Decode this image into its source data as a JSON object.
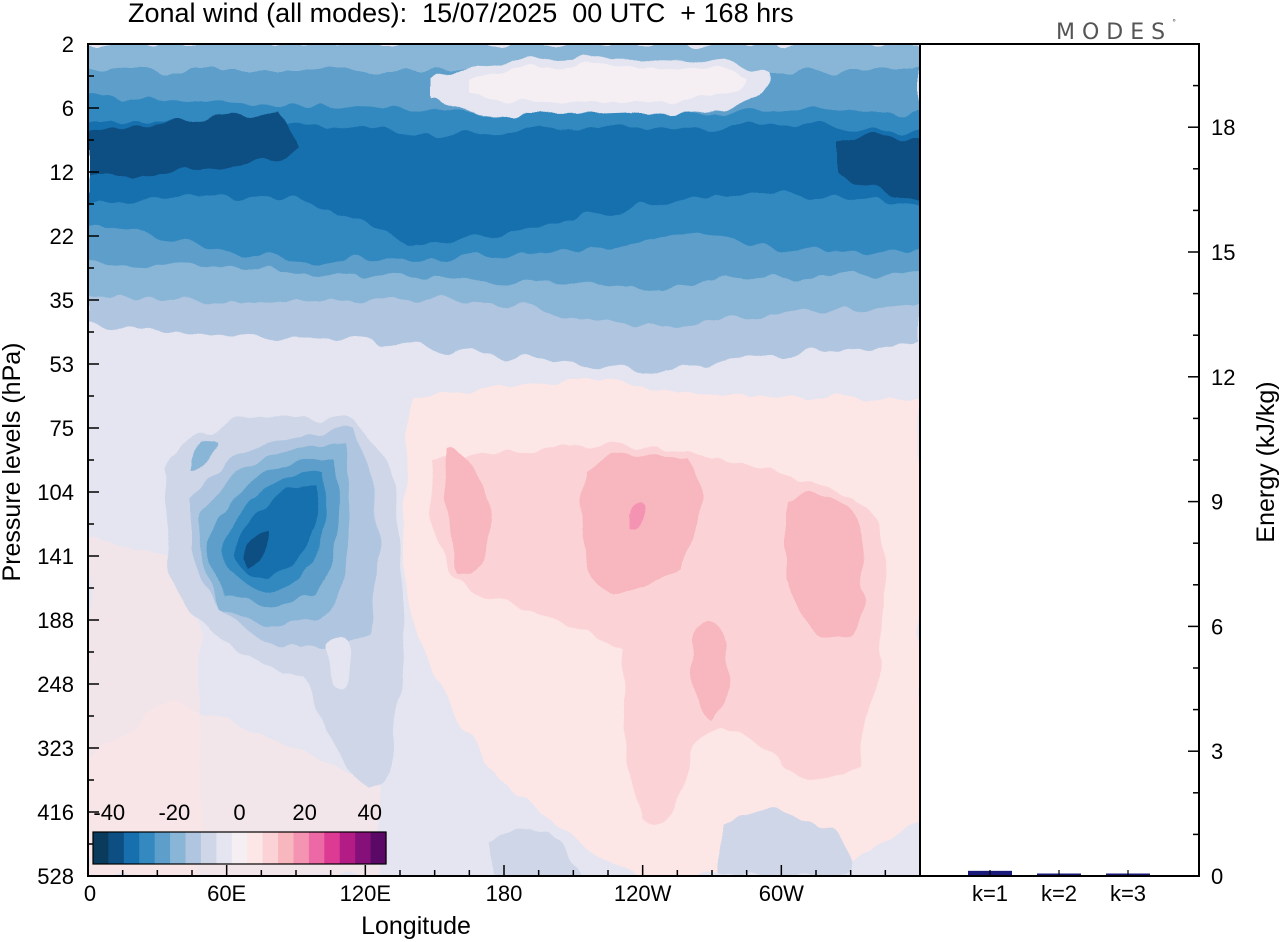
{
  "title": "Zonal wind (all modes):  15/07/2025  00 UTC  + 168 hrs",
  "logo_text": "MODES",
  "logo_mark": "°",
  "chart_data": [
    {
      "type": "heatmap",
      "xlabel": "Longitude",
      "ylabel": "Pressure levels (hPa)",
      "x_ticks": [
        "0",
        "60E",
        "120E",
        "180",
        "120W",
        "60W"
      ],
      "x_tick_values": [
        0,
        60,
        120,
        180,
        240,
        300
      ],
      "xlim": [
        0,
        360
      ],
      "y_ticks": [
        "2",
        "6",
        "12",
        "22",
        "35",
        "53",
        "75",
        "104",
        "141",
        "188",
        "248",
        "323",
        "416",
        "528"
      ],
      "y_scale": "levels (top to bottom, evenly spaced)",
      "colorbar": {
        "ticks": [
          "-40",
          "-20",
          "0",
          "20",
          "40"
        ],
        "range": [
          -45,
          45
        ],
        "colors": [
          "#0a3a5c",
          "#0d4f82",
          "#176fae",
          "#3389c0",
          "#5d9fca",
          "#89b6d7",
          "#b0c5df",
          "#ced6e8",
          "#e4e5f0",
          "#f5eff4",
          "#fde6e6",
          "#fbd3d6",
          "#f8b6be",
          "#f493b2",
          "#ed69a6",
          "#dc3a93",
          "#b31c85",
          "#86107a",
          "#5a0a66"
        ]
      },
      "features": [
        {
          "description": "easterly belt",
          "lon_range": [
            0,
            360
          ],
          "pressure_range_hPa": [
            6,
            35
          ],
          "value_range": [
            -40,
            -20
          ]
        },
        {
          "description": "weak westerlies",
          "lon_range": [
            150,
            250
          ],
          "pressure_range_hPa": [
            2,
            6
          ],
          "value_range": [
            0,
            5
          ]
        },
        {
          "description": "easterly jet core",
          "lon_range": [
            50,
            110
          ],
          "pressure_range_hPa": [
            90,
            200
          ],
          "value_range": [
            -40,
            -25
          ]
        },
        {
          "description": "westerly maxima",
          "lon_range": [
            150,
            330
          ],
          "pressure_range_hPa": [
            100,
            300
          ],
          "value_range": [
            5,
            20
          ]
        }
      ]
    },
    {
      "type": "bar",
      "categories": [
        "k=1",
        "k=2",
        "k=3"
      ],
      "values": [
        0.1,
        0.03,
        0.02
      ],
      "ylabel": "Energy (kJ/kg)",
      "ylim": [
        0,
        20
      ],
      "y_ticks": [
        "0",
        "3",
        "6",
        "9",
        "12",
        "15",
        "18"
      ],
      "y_tick_values": [
        0,
        3,
        6,
        9,
        12,
        15,
        18
      ],
      "bar_color": "#1a1a7a"
    }
  ]
}
